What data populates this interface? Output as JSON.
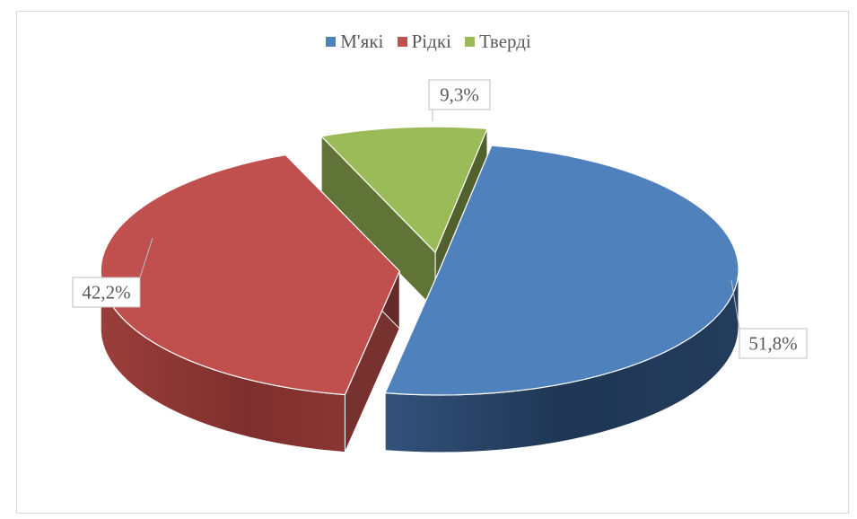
{
  "chart_data": {
    "type": "pie",
    "style": "3d-exploded",
    "legend_position": "top",
    "categories": [
      "М'які",
      "Рідкі",
      "Тверді"
    ],
    "values": [
      51.8,
      42.2,
      9.3
    ],
    "data_labels": [
      "51,8%",
      "42,2%",
      "9,3%"
    ],
    "colors": [
      "#4f81bd",
      "#c0504d",
      "#9bbb59"
    ]
  }
}
